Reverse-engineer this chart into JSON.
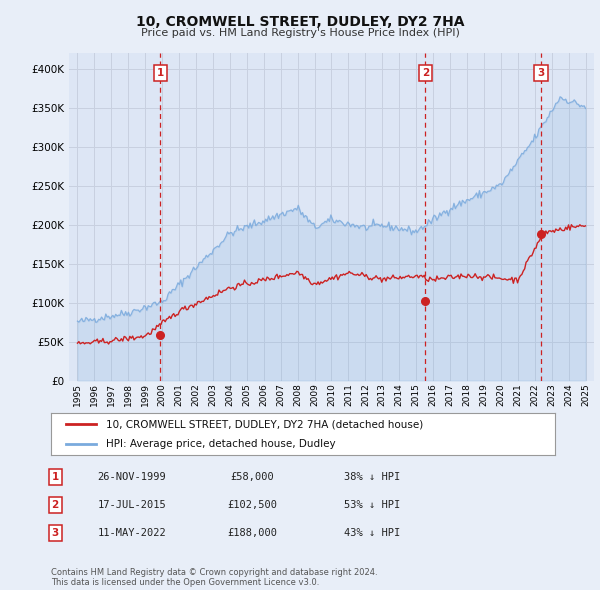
{
  "title": "10, CROMWELL STREET, DUDLEY, DY2 7HA",
  "subtitle": "Price paid vs. HM Land Registry's House Price Index (HPI)",
  "xlim": [
    1994.5,
    2025.5
  ],
  "ylim": [
    0,
    420000
  ],
  "yticks": [
    0,
    50000,
    100000,
    150000,
    200000,
    250000,
    300000,
    350000,
    400000
  ],
  "ytick_labels": [
    "£0",
    "£50K",
    "£100K",
    "£150K",
    "£200K",
    "£250K",
    "£300K",
    "£350K",
    "£400K"
  ],
  "xtick_years": [
    1995,
    1996,
    1997,
    1998,
    1999,
    2000,
    2001,
    2002,
    2003,
    2004,
    2005,
    2006,
    2007,
    2008,
    2009,
    2010,
    2011,
    2012,
    2013,
    2014,
    2015,
    2016,
    2017,
    2018,
    2019,
    2020,
    2021,
    2022,
    2023,
    2024,
    2025
  ],
  "background_color": "#e8eef8",
  "plot_bg_color": "#dde6f5",
  "grid_color": "#c8d0e0",
  "hpi_color": "#7aaadd",
  "price_color": "#cc2222",
  "sale_marker_color": "#cc2222",
  "vline_color": "#cc2222",
  "sale_dates": [
    1999.9,
    2015.54,
    2022.37
  ],
  "sale_prices": [
    58000,
    102500,
    188000
  ],
  "sale_labels": [
    "1",
    "2",
    "3"
  ],
  "legend_label_price": "10, CROMWELL STREET, DUDLEY, DY2 7HA (detached house)",
  "legend_label_hpi": "HPI: Average price, detached house, Dudley",
  "table_rows": [
    [
      "1",
      "26-NOV-1999",
      "£58,000",
      "38% ↓ HPI"
    ],
    [
      "2",
      "17-JUL-2015",
      "£102,500",
      "53% ↓ HPI"
    ],
    [
      "3",
      "11-MAY-2022",
      "£188,000",
      "43% ↓ HPI"
    ]
  ],
  "footer": "Contains HM Land Registry data © Crown copyright and database right 2024.\nThis data is licensed under the Open Government Licence v3.0."
}
